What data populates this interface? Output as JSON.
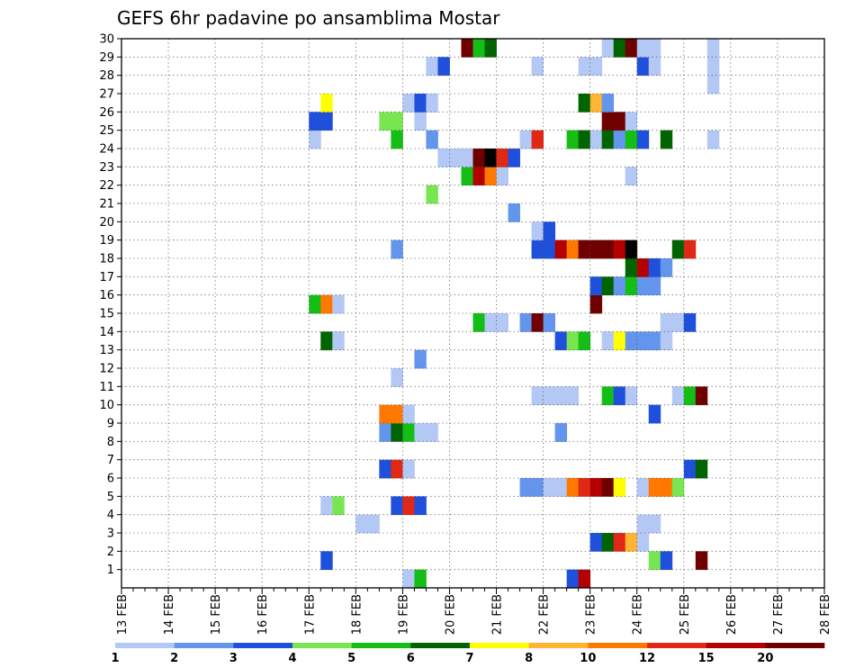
{
  "chart_data": {
    "type": "heatmap",
    "title": "GEFS 6hr padavine po ansamblima Mostar",
    "x_labels": [
      "13 FEB",
      "14 FEB",
      "15 FEB",
      "16 FEB",
      "17 FEB",
      "18 FEB",
      "19 FEB",
      "20 FEB",
      "21 FEB",
      "22 FEB",
      "23 FEB",
      "24 FEB",
      "25 FEB",
      "26 FEB",
      "27 FEB",
      "28 FEB"
    ],
    "y_labels": [
      "1",
      "2",
      "3",
      "4",
      "5",
      "6",
      "7",
      "8",
      "9",
      "10",
      "11",
      "12",
      "13",
      "14",
      "15",
      "16",
      "17",
      "18",
      "19",
      "20",
      "21",
      "22",
      "23",
      "24",
      "25",
      "26",
      "27",
      "28",
      "29",
      "30"
    ],
    "x_step_hours": 6,
    "y_range": [
      0,
      30
    ],
    "grid": true,
    "colorbar": {
      "labels": [
        "1",
        "2",
        "3",
        "4",
        "5",
        "6",
        "7",
        "8",
        "10",
        "12",
        "15",
        "20"
      ],
      "colors": [
        "#b4c8f5",
        "#6495ed",
        "#1e50dc",
        "#78e650",
        "#14be14",
        "#006400",
        "#ffff00",
        "#ffb432",
        "#ff7800",
        "#e12814",
        "#b40000",
        "#6e0000"
      ]
    },
    "cells": [
      [
        24,
        0,
        1
      ],
      [
        25,
        0,
        5
      ],
      [
        38,
        0,
        3
      ],
      [
        39,
        0,
        11
      ],
      [
        17,
        1,
        3
      ],
      [
        45,
        1,
        4
      ],
      [
        46,
        1,
        3
      ],
      [
        49,
        1,
        12
      ],
      [
        40,
        2,
        3
      ],
      [
        41,
        2,
        6
      ],
      [
        42,
        2,
        10
      ],
      [
        43,
        2,
        8
      ],
      [
        44,
        2,
        1
      ],
      [
        20,
        3,
        1
      ],
      [
        21,
        3,
        1
      ],
      [
        44,
        3,
        1
      ],
      [
        45,
        3,
        1
      ],
      [
        17,
        4,
        1
      ],
      [
        18,
        4,
        4
      ],
      [
        23,
        4,
        3
      ],
      [
        24,
        4,
        10
      ],
      [
        25,
        4,
        3
      ],
      [
        34,
        5,
        2
      ],
      [
        35,
        5,
        2
      ],
      [
        36,
        5,
        1
      ],
      [
        37,
        5,
        1
      ],
      [
        38,
        5,
        9
      ],
      [
        39,
        5,
        10
      ],
      [
        40,
        5,
        11
      ],
      [
        41,
        5,
        12
      ],
      [
        42,
        5,
        7
      ],
      [
        44,
        5,
        1
      ],
      [
        45,
        5,
        9
      ],
      [
        46,
        5,
        9
      ],
      [
        47,
        5,
        4
      ],
      [
        22,
        6,
        3
      ],
      [
        23,
        6,
        10
      ],
      [
        24,
        6,
        1
      ],
      [
        48,
        6,
        3
      ],
      [
        49,
        6,
        6
      ],
      [
        22,
        8,
        2
      ],
      [
        23,
        8,
        6
      ],
      [
        24,
        8,
        5
      ],
      [
        25,
        8,
        1
      ],
      [
        26,
        8,
        1
      ],
      [
        37,
        8,
        2
      ],
      [
        22,
        9,
        9
      ],
      [
        23,
        9,
        9
      ],
      [
        24,
        9,
        1
      ],
      [
        45,
        9,
        3
      ],
      [
        35,
        10,
        1
      ],
      [
        36,
        10,
        1
      ],
      [
        37,
        10,
        1
      ],
      [
        38,
        10,
        1
      ],
      [
        41,
        10,
        5
      ],
      [
        42,
        10,
        3
      ],
      [
        43,
        10,
        1
      ],
      [
        47,
        10,
        1
      ],
      [
        48,
        10,
        5
      ],
      [
        49,
        10,
        12
      ],
      [
        23,
        11,
        1
      ],
      [
        25,
        12,
        2
      ],
      [
        17,
        13,
        6
      ],
      [
        18,
        13,
        1
      ],
      [
        37,
        13,
        3
      ],
      [
        38,
        13,
        4
      ],
      [
        39,
        13,
        5
      ],
      [
        41,
        13,
        1
      ],
      [
        42,
        13,
        7
      ],
      [
        43,
        13,
        2
      ],
      [
        44,
        13,
        2
      ],
      [
        45,
        13,
        2
      ],
      [
        46,
        13,
        1
      ],
      [
        30,
        14,
        5
      ],
      [
        31,
        14,
        1
      ],
      [
        32,
        14,
        1
      ],
      [
        34,
        14,
        2
      ],
      [
        35,
        14,
        12
      ],
      [
        36,
        14,
        2
      ],
      [
        46,
        14,
        1
      ],
      [
        47,
        14,
        1
      ],
      [
        48,
        14,
        3
      ],
      [
        16,
        15,
        5
      ],
      [
        17,
        15,
        9
      ],
      [
        18,
        15,
        1
      ],
      [
        40,
        15,
        12
      ],
      [
        40,
        16,
        3
      ],
      [
        41,
        16,
        6
      ],
      [
        42,
        16,
        2
      ],
      [
        43,
        16,
        5
      ],
      [
        44,
        16,
        2
      ],
      [
        45,
        16,
        2
      ],
      [
        43,
        17,
        6
      ],
      [
        44,
        17,
        11
      ],
      [
        45,
        17,
        3
      ],
      [
        46,
        17,
        2
      ],
      [
        23,
        18,
        2
      ],
      [
        35,
        18,
        3
      ],
      [
        36,
        18,
        3
      ],
      [
        37,
        18,
        11
      ],
      [
        38,
        18,
        9
      ],
      [
        39,
        18,
        12
      ],
      [
        40,
        18,
        12
      ],
      [
        41,
        18,
        12
      ],
      [
        42,
        18,
        11
      ],
      [
        43,
        18,
        13
      ],
      [
        47,
        18,
        6
      ],
      [
        48,
        18,
        10
      ],
      [
        35,
        19,
        1
      ],
      [
        36,
        19,
        3
      ],
      [
        33,
        20,
        2
      ],
      [
        26,
        21,
        4
      ],
      [
        29,
        22,
        5
      ],
      [
        30,
        22,
        11
      ],
      [
        31,
        22,
        9
      ],
      [
        32,
        22,
        1
      ],
      [
        43,
        22,
        1
      ],
      [
        27,
        23,
        1
      ],
      [
        28,
        23,
        1
      ],
      [
        29,
        23,
        1
      ],
      [
        30,
        23,
        12
      ],
      [
        31,
        23,
        13
      ],
      [
        32,
        23,
        10
      ],
      [
        33,
        23,
        3
      ],
      [
        16,
        24,
        1
      ],
      [
        23,
        24,
        5
      ],
      [
        26,
        24,
        2
      ],
      [
        34,
        24,
        1
      ],
      [
        35,
        24,
        10
      ],
      [
        38,
        24,
        5
      ],
      [
        39,
        24,
        6
      ],
      [
        40,
        24,
        1
      ],
      [
        41,
        24,
        6
      ],
      [
        42,
        24,
        2
      ],
      [
        43,
        24,
        5
      ],
      [
        44,
        24,
        3
      ],
      [
        46,
        24,
        6
      ],
      [
        50,
        24,
        1
      ],
      [
        16,
        25,
        3
      ],
      [
        17,
        25,
        3
      ],
      [
        22,
        25,
        4
      ],
      [
        23,
        25,
        4
      ],
      [
        25,
        25,
        1
      ],
      [
        41,
        25,
        12
      ],
      [
        42,
        25,
        12
      ],
      [
        43,
        25,
        1
      ],
      [
        17,
        26,
        7
      ],
      [
        24,
        26,
        1
      ],
      [
        25,
        26,
        3
      ],
      [
        26,
        26,
        1
      ],
      [
        39,
        26,
        6
      ],
      [
        40,
        26,
        8
      ],
      [
        41,
        26,
        2
      ],
      [
        50,
        27,
        1
      ],
      [
        26,
        28,
        1
      ],
      [
        27,
        28,
        3
      ],
      [
        35,
        28,
        1
      ],
      [
        39,
        28,
        1
      ],
      [
        40,
        28,
        1
      ],
      [
        44,
        28,
        3
      ],
      [
        45,
        28,
        1
      ],
      [
        50,
        28,
        1
      ],
      [
        29,
        29,
        12
      ],
      [
        30,
        29,
        5
      ],
      [
        31,
        29,
        6
      ],
      [
        41,
        29,
        1
      ],
      [
        42,
        29,
        6
      ],
      [
        43,
        29,
        12
      ],
      [
        44,
        29,
        1
      ],
      [
        45,
        29,
        1
      ],
      [
        50,
        29,
        1
      ]
    ]
  }
}
